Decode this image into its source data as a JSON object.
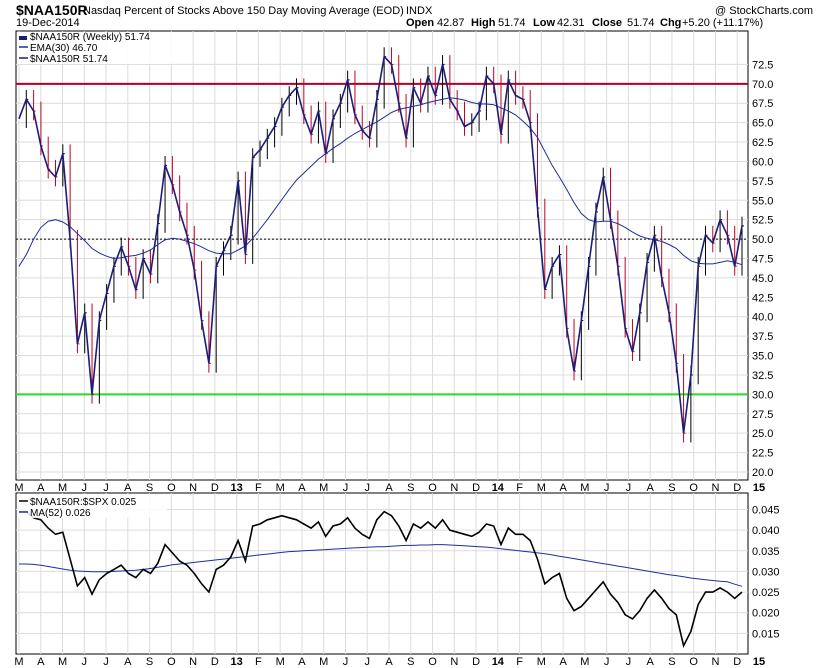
{
  "header": {
    "symbol": "$NAA150R",
    "description": "Nasdaq Percent of Stocks Above 150 Day Moving Average (EOD)",
    "exchange": "INDX",
    "date": "19-Dec-2014",
    "copyright": "@ StockCharts.com",
    "open_label": "Open",
    "open_value": "42.87",
    "high_label": "High",
    "high_value": "51.74",
    "low_label": "Low",
    "low_value": "42.31",
    "close_label": "Close",
    "close_value": "51.74",
    "chg_label": "Chg",
    "chg_value": "+5.20 (+11.17%)"
  },
  "colors": {
    "price_line": "#1c1c7a",
    "ema_line": "#1f2f9a",
    "upper_band": "#b0002a",
    "lower_band": "#22dd22",
    "up_bar": "#000000",
    "down_bar": "#c00020",
    "grid": "#dcdcdc",
    "ratio_line": "#000000",
    "ratio_ma": "#1f2f9a"
  },
  "chart_data": [
    {
      "type": "line",
      "legend": [
        "$NAA150R (Weekly) 51.74",
        "EMA(30) 46.70",
        "$NAA150R 51.74"
      ],
      "x_tick_labels": [
        "M",
        "A",
        "M",
        "J",
        "J",
        "A",
        "S",
        "O",
        "N",
        "D",
        "13",
        "F",
        "M",
        "A",
        "M",
        "J",
        "J",
        "A",
        "S",
        "O",
        "N",
        "D",
        "14",
        "F",
        "M",
        "A",
        "M",
        "J",
        "J",
        "A",
        "S",
        "O",
        "N",
        "D",
        "15"
      ],
      "ylim": [
        20,
        75
      ],
      "y_ticks": [
        "20.0",
        "22.5",
        "25.0",
        "27.5",
        "30.0",
        "32.5",
        "35.0",
        "37.5",
        "40.0",
        "42.5",
        "45.0",
        "47.5",
        "50.0",
        "52.5",
        "55.0",
        "57.5",
        "60.0",
        "62.5",
        "65.0",
        "67.5",
        "70.0",
        "72.5"
      ],
      "horizontal_lines": [
        {
          "value": 70.0,
          "style": "upper-band"
        },
        {
          "value": 30.0,
          "style": "lower-band"
        },
        {
          "value": 50.0,
          "style": "dashed"
        }
      ],
      "series": [
        {
          "name": "$NAA150R (Weekly)",
          "values": [
            65.5,
            68.0,
            66.5,
            62.0,
            59.0,
            58.0,
            61.0,
            50.0,
            36.5,
            40.5,
            30.0,
            39.5,
            43.0,
            46.5,
            49.0,
            46.5,
            43.5,
            47.5,
            45.5,
            52.0,
            59.5,
            57.0,
            53.5,
            50.5,
            46.0,
            39.5,
            34.0,
            46.5,
            48.5,
            50.5,
            57.5,
            48.0,
            60.5,
            61.5,
            63.0,
            64.5,
            67.0,
            68.5,
            69.5,
            66.0,
            63.5,
            66.5,
            61.0,
            65.5,
            67.5,
            70.5,
            66.0,
            64.0,
            63.0,
            68.0,
            73.5,
            72.5,
            67.5,
            63.0,
            69.5,
            67.5,
            71.0,
            68.5,
            72.5,
            68.0,
            66.5,
            64.5,
            65.0,
            66.5,
            71.0,
            70.0,
            63.5,
            70.5,
            68.5,
            68.0,
            65.0,
            54.0,
            43.5,
            46.5,
            48.0,
            38.5,
            33.0,
            39.5,
            46.5,
            53.5,
            58.0,
            52.5,
            46.5,
            38.5,
            35.5,
            40.5,
            47.0,
            50.5,
            45.0,
            40.5,
            34.0,
            25.0,
            32.5,
            46.5,
            50.5,
            49.5,
            52.5,
            50.5,
            46.5,
            51.7
          ]
        },
        {
          "name": "EMA(30)",
          "values": [
            46.5,
            48.0,
            50.0,
            51.5,
            52.3,
            52.5,
            52.2,
            51.6,
            50.7,
            49.8,
            48.8,
            48.2,
            47.8,
            47.5,
            47.6,
            47.8,
            47.9,
            48.2,
            48.6,
            49.3,
            49.9,
            50.1,
            50.0,
            49.7,
            49.4,
            49.0,
            48.5,
            48.2,
            48.1,
            48.1,
            48.6,
            49.1,
            50.1,
            51.3,
            52.5,
            53.8,
            55.1,
            56.4,
            57.6,
            58.5,
            59.4,
            60.3,
            61.0,
            61.7,
            62.3,
            63.0,
            63.6,
            64.1,
            64.6,
            65.1,
            65.7,
            66.3,
            66.7,
            66.9,
            67.1,
            67.3,
            67.6,
            67.8,
            68.0,
            68.2,
            68.1,
            67.9,
            67.6,
            67.4,
            67.4,
            67.3,
            66.9,
            66.5,
            66.0,
            65.2,
            64.3,
            63.1,
            61.3,
            59.5,
            58.0,
            56.4,
            54.7,
            53.3,
            52.5,
            52.2,
            52.3,
            52.3,
            52.0,
            51.5,
            50.9,
            50.4,
            50.1,
            49.9,
            49.7,
            49.3,
            48.8,
            47.9,
            47.2,
            46.9,
            46.8,
            46.8,
            47.0,
            47.2,
            47.0,
            46.7
          ]
        }
      ]
    },
    {
      "type": "line",
      "legend": [
        "$NAA150R:$SPX 0.025",
        "MA(52) 0.026"
      ],
      "x_tick_labels": [
        "M",
        "A",
        "M",
        "J",
        "J",
        "A",
        "S",
        "O",
        "N",
        "D",
        "13",
        "F",
        "M",
        "A",
        "M",
        "J",
        "J",
        "A",
        "S",
        "O",
        "N",
        "D",
        "14",
        "F",
        "M",
        "A",
        "M",
        "J",
        "J",
        "A",
        "S",
        "O",
        "N",
        "D",
        "15"
      ],
      "ylim": [
        0.01,
        0.049
      ],
      "y_ticks": [
        "0.015",
        "0.020",
        "0.025",
        "0.030",
        "0.035",
        "0.040",
        "0.045"
      ],
      "series": [
        {
          "name": "$NAA150R:$SPX",
          "values": [
            0.0445,
            0.0445,
            0.043,
            0.0425,
            0.0405,
            0.039,
            0.0395,
            0.033,
            0.0265,
            0.0285,
            0.0245,
            0.028,
            0.0295,
            0.0305,
            0.0315,
            0.0295,
            0.0285,
            0.0305,
            0.0295,
            0.032,
            0.0365,
            0.0345,
            0.0325,
            0.0315,
            0.0295,
            0.027,
            0.025,
            0.0305,
            0.0315,
            0.0335,
            0.0375,
            0.0325,
            0.041,
            0.0415,
            0.0425,
            0.043,
            0.0435,
            0.043,
            0.0425,
            0.0415,
            0.0405,
            0.042,
            0.0385,
            0.041,
            0.0415,
            0.043,
            0.0405,
            0.039,
            0.038,
            0.0425,
            0.0445,
            0.0435,
            0.041,
            0.0375,
            0.0415,
            0.0405,
            0.042,
            0.0405,
            0.0425,
            0.04,
            0.0395,
            0.039,
            0.0385,
            0.0395,
            0.0415,
            0.041,
            0.0365,
            0.0405,
            0.039,
            0.039,
            0.0375,
            0.033,
            0.027,
            0.0285,
            0.0295,
            0.0235,
            0.0205,
            0.0215,
            0.0235,
            0.0255,
            0.0275,
            0.0245,
            0.0225,
            0.0195,
            0.0185,
            0.0205,
            0.0235,
            0.0255,
            0.0235,
            0.021,
            0.0195,
            0.012,
            0.0155,
            0.022,
            0.025,
            0.025,
            0.026,
            0.025,
            0.0235,
            0.025
          ]
        },
        {
          "name": "MA(52)",
          "values": [
            0.0318,
            0.0318,
            0.0317,
            0.0315,
            0.0312,
            0.0309,
            0.0306,
            0.0303,
            0.0301,
            0.03,
            0.0299,
            0.0299,
            0.0299,
            0.03,
            0.0301,
            0.0302,
            0.0303,
            0.0305,
            0.0307,
            0.031,
            0.0313,
            0.0316,
            0.0318,
            0.032,
            0.0322,
            0.0324,
            0.0326,
            0.0328,
            0.033,
            0.0332,
            0.0334,
            0.0336,
            0.0338,
            0.034,
            0.0342,
            0.0344,
            0.0346,
            0.0348,
            0.0349,
            0.035,
            0.0351,
            0.0352,
            0.0353,
            0.0354,
            0.0355,
            0.0356,
            0.0357,
            0.0358,
            0.0359,
            0.036,
            0.036,
            0.0361,
            0.0362,
            0.0363,
            0.0363,
            0.0364,
            0.0364,
            0.0365,
            0.0365,
            0.0364,
            0.0363,
            0.0362,
            0.0361,
            0.036,
            0.0359,
            0.0357,
            0.0355,
            0.0353,
            0.0351,
            0.0349,
            0.0347,
            0.0345,
            0.0343,
            0.034,
            0.0337,
            0.0334,
            0.0331,
            0.0328,
            0.0325,
            0.0322,
            0.0319,
            0.0316,
            0.0313,
            0.031,
            0.0307,
            0.0304,
            0.0301,
            0.0298,
            0.0295,
            0.0292,
            0.029,
            0.0287,
            0.0284,
            0.0282,
            0.028,
            0.0278,
            0.0276,
            0.0275,
            0.0269,
            0.0264
          ]
        }
      ]
    }
  ]
}
